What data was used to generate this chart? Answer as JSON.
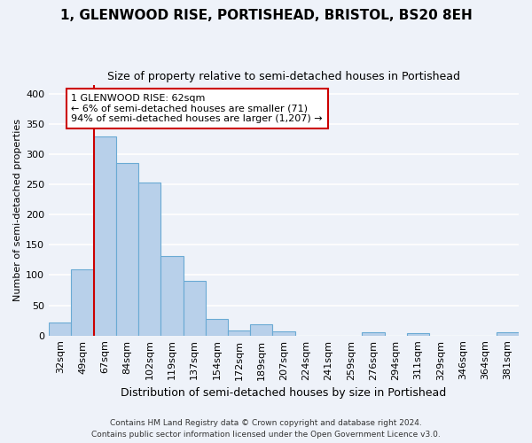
{
  "title1": "1, GLENWOOD RISE, PORTISHEAD, BRISTOL, BS20 8EH",
  "title2": "Size of property relative to semi-detached houses in Portishead",
  "xlabel": "Distribution of semi-detached houses by size in Portishead",
  "ylabel": "Number of semi-detached properties",
  "categories": [
    "32sqm",
    "49sqm",
    "67sqm",
    "84sqm",
    "102sqm",
    "119sqm",
    "137sqm",
    "154sqm",
    "172sqm",
    "189sqm",
    "207sqm",
    "224sqm",
    "241sqm",
    "259sqm",
    "276sqm",
    "294sqm",
    "311sqm",
    "329sqm",
    "346sqm",
    "364sqm",
    "381sqm"
  ],
  "values": [
    22,
    110,
    330,
    286,
    253,
    131,
    90,
    27,
    9,
    19,
    7,
    0,
    0,
    0,
    5,
    0,
    4,
    0,
    0,
    0,
    5
  ],
  "bar_color": "#b8d0ea",
  "bar_edge_color": "#6aaad4",
  "vline_color": "#cc0000",
  "annotation_text": "1 GLENWOOD RISE: 62sqm\n← 6% of semi-detached houses are smaller (71)\n94% of semi-detached houses are larger (1,207) →",
  "annotation_box_color": "#ffffff",
  "annotation_box_edge": "#cc0000",
  "ylim": [
    0,
    415
  ],
  "yticks": [
    0,
    50,
    100,
    150,
    200,
    250,
    300,
    350,
    400
  ],
  "footer1": "Contains HM Land Registry data © Crown copyright and database right 2024.",
  "footer2": "Contains public sector information licensed under the Open Government Licence v3.0.",
  "bg_color": "#eef2f9",
  "grid_color": "#ffffff",
  "title1_fontsize": 11,
  "title2_fontsize": 9,
  "xlabel_fontsize": 9,
  "ylabel_fontsize": 8,
  "tick_fontsize": 8,
  "ann_fontsize": 8
}
